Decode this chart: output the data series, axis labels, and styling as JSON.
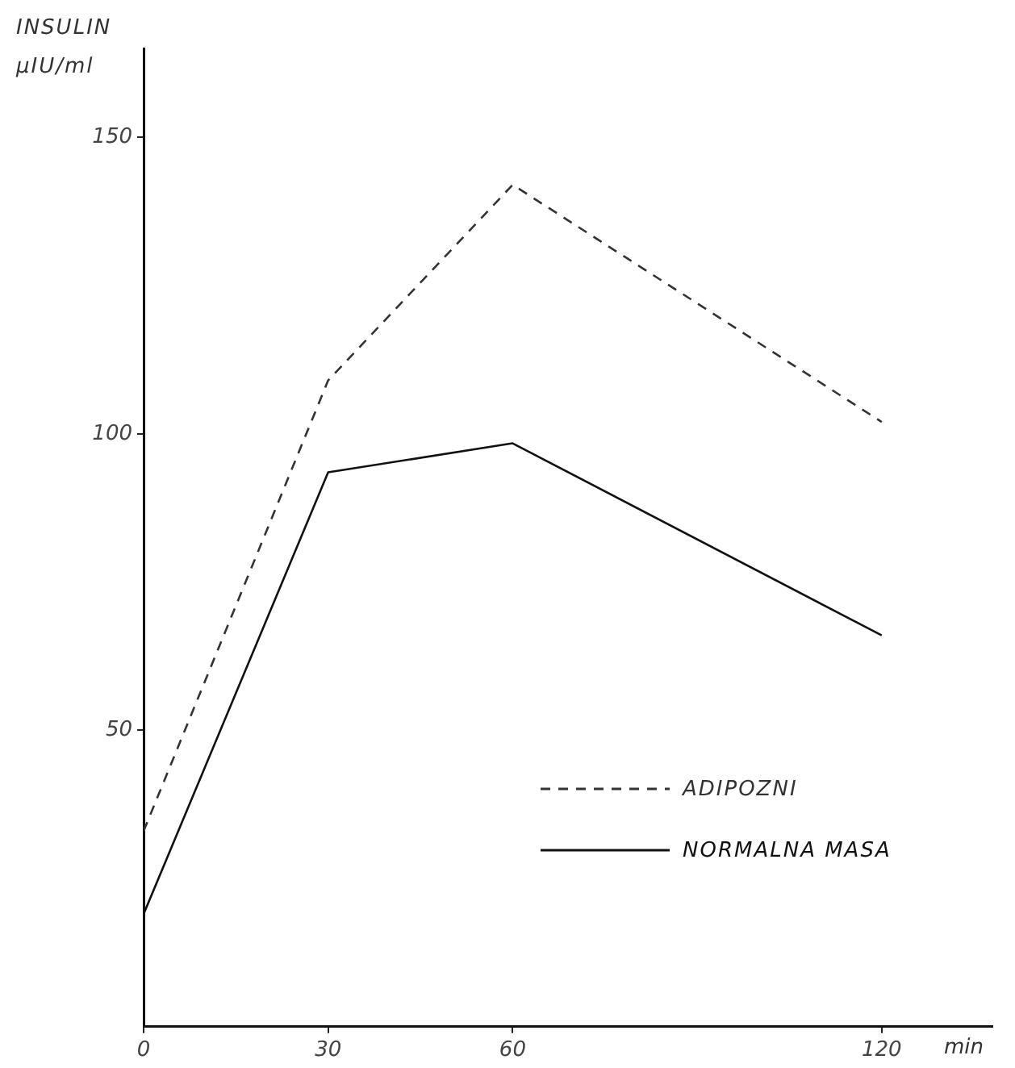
{
  "chart_data": {
    "type": "line",
    "ylabel": "INSULIN μIU/ml",
    "xlabel": "min",
    "x": [
      0,
      30,
      60,
      120
    ],
    "xlim": [
      0,
      138
    ],
    "xticks": [
      0,
      30,
      60,
      120
    ],
    "ylim": [
      0,
      165
    ],
    "yticks": [
      50,
      100,
      150
    ],
    "series": [
      {
        "name": "ADIPOZNI",
        "color": "#333333",
        "line_style": "dashed",
        "values": [
          33,
          109,
          142,
          102
        ]
      },
      {
        "name": "NORMALNA MASA",
        "color": "#111111",
        "line_style": "solid",
        "values": [
          19,
          93.5,
          98.4,
          66
        ]
      }
    ],
    "grid": false,
    "legend": "bottom right",
    "marker": "none"
  }
}
